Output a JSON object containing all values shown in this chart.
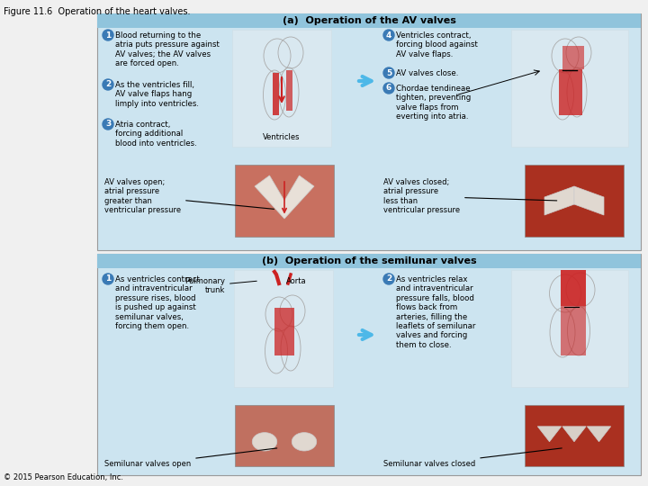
{
  "fig_title": "Figure 11.6  Operation of the heart valves.",
  "fig_title_fontsize": 7,
  "copyright": "© 2015 Pearson Education, Inc.",
  "panel_a_title": "(a)  Operation of the AV valves",
  "panel_b_title": "(b)  Operation of the semilunar valves",
  "panel_bg": "#cce4f0",
  "header_bg": "#90c4dc",
  "outer_bg": "#f0f0f0",
  "av_text1": "Blood returning to the\natria puts pressure against\nAV valves; the AV valves\nare forced open.",
  "av_text2": "As the ventricles fill,\nAV valve flaps hang\nlimply into ventricles.",
  "av_text3": "Atria contract,\nforcing additional\nblood into ventricles.",
  "av_text4": "Ventricles contract,\nforcing blood against\nAV valve flaps.",
  "av_text5": "AV valves close.",
  "av_text6": "Chordae tendineae\ntighten, preventing\nvalve flaps from\neverting into atria.",
  "av_ventricles_label": "Ventricles",
  "av_label_open": "AV valves open;\natrial pressure\ngreater than\nventricular pressure",
  "av_label_closed": "AV valves closed;\natrial pressure\nless than\nventricular pressure",
  "sl_text1": "As ventricles contract\nand intraventricular\npressure rises, blood\nis pushed up against\nsemilunar valves,\nforcing them open.",
  "sl_text2": "As ventricles relax\nand intraventricular\npressure falls, blood\nflows back from\narteries, filling the\nleaflets of semilunar\nvalves and forcing\nthem to close.",
  "sl_label_open": "Semilunar valves open",
  "sl_label_closed": "Semilunar valves closed",
  "sl_pulmonary": "Pulmonary\ntrunk",
  "sl_aorta": "Aorta",
  "circle_color": "#3a7ab5",
  "circle_text_color": "#ffffff",
  "arrow_color": "#87CEEB",
  "heart_outline": "#cccccc",
  "heart_red": "#cc2222",
  "heart_bg": "#f8f4f0",
  "body_fontsize": 6.2,
  "label_fontsize": 6.0,
  "title_fontsize": 8.0,
  "num_fontsize": 6.5
}
